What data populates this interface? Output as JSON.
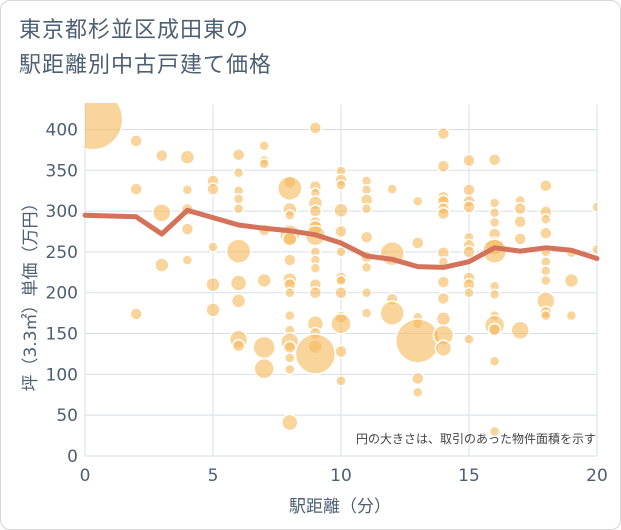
{
  "chart_data": {
    "type": "scatter",
    "title_lines": [
      "東京都杉並区成田東の",
      "駅距離別中古戸建て価格"
    ],
    "xlabel": "駅距離（分）",
    "ylabel": "坪（3.3㎡）単価（万円）",
    "xlim": [
      0,
      20
    ],
    "ylim": [
      0,
      430
    ],
    "xticks": [
      0,
      5,
      10,
      15,
      20
    ],
    "yticks": [
      0,
      50,
      100,
      150,
      200,
      250,
      300,
      350,
      400
    ],
    "note": "円の大きさは、取引のあった物件面積を示す",
    "colors": {
      "bubble": "#f5b95e",
      "line": "#d4735a",
      "grid": "#d7dfe6",
      "text": "#4d5f73"
    },
    "trend_line": {
      "x": [
        0,
        1,
        2,
        3,
        4,
        5,
        6,
        7,
        8,
        9,
        10,
        11,
        12,
        13,
        14,
        15,
        16,
        17,
        18,
        19,
        20
      ],
      "y": [
        295,
        294,
        293,
        272,
        301,
        292,
        283,
        279,
        276,
        271,
        261,
        245,
        241,
        232,
        231,
        238,
        255,
        251,
        255,
        252,
        242
      ]
    },
    "bubbles": [
      {
        "x": 0.3,
        "y": 412,
        "s": 3
      },
      {
        "x": 2,
        "y": 386,
        "s": 0.6
      },
      {
        "x": 2,
        "y": 327,
        "s": 0.6
      },
      {
        "x": 2,
        "y": 174,
        "s": 0.6
      },
      {
        "x": 3,
        "y": 368,
        "s": 0.6
      },
      {
        "x": 3,
        "y": 298,
        "s": 0.9
      },
      {
        "x": 3,
        "y": 234,
        "s": 0.7
      },
      {
        "x": 4,
        "y": 366,
        "s": 0.7
      },
      {
        "x": 4,
        "y": 326,
        "s": 0.5
      },
      {
        "x": 4,
        "y": 302,
        "s": 0.6
      },
      {
        "x": 4,
        "y": 278,
        "s": 0.6
      },
      {
        "x": 4,
        "y": 240,
        "s": 0.5
      },
      {
        "x": 5,
        "y": 337,
        "s": 0.6
      },
      {
        "x": 5,
        "y": 327,
        "s": 0.6
      },
      {
        "x": 5,
        "y": 256,
        "s": 0.5
      },
      {
        "x": 5,
        "y": 210,
        "s": 0.7
      },
      {
        "x": 5,
        "y": 179,
        "s": 0.7
      },
      {
        "x": 6,
        "y": 369,
        "s": 0.6
      },
      {
        "x": 6,
        "y": 347,
        "s": 0.5
      },
      {
        "x": 6,
        "y": 325,
        "s": 0.5
      },
      {
        "x": 6,
        "y": 315,
        "s": 0.5
      },
      {
        "x": 6,
        "y": 303,
        "s": 0.5
      },
      {
        "x": 6,
        "y": 251,
        "s": 1.2
      },
      {
        "x": 6,
        "y": 212,
        "s": 0.8
      },
      {
        "x": 6,
        "y": 190,
        "s": 0.7
      },
      {
        "x": 6,
        "y": 143,
        "s": 0.9
      },
      {
        "x": 6,
        "y": 135,
        "s": 0.6
      },
      {
        "x": 7,
        "y": 380,
        "s": 0.5
      },
      {
        "x": 7,
        "y": 362,
        "s": 0.5
      },
      {
        "x": 7,
        "y": 358,
        "s": 0.5
      },
      {
        "x": 7,
        "y": 277,
        "s": 0.6
      },
      {
        "x": 7,
        "y": 215,
        "s": 0.7
      },
      {
        "x": 7,
        "y": 133,
        "s": 1.1
      },
      {
        "x": 7,
        "y": 107,
        "s": 1.0
      },
      {
        "x": 8,
        "y": 335,
        "s": 0.6
      },
      {
        "x": 8,
        "y": 328,
        "s": 1.2
      },
      {
        "x": 8,
        "y": 302,
        "s": 0.7
      },
      {
        "x": 8,
        "y": 295,
        "s": 0.5
      },
      {
        "x": 8,
        "y": 271,
        "s": 1.0
      },
      {
        "x": 8,
        "y": 266,
        "s": 0.7
      },
      {
        "x": 8,
        "y": 240,
        "s": 0.6
      },
      {
        "x": 8,
        "y": 216,
        "s": 0.7
      },
      {
        "x": 8,
        "y": 210,
        "s": 0.6
      },
      {
        "x": 8,
        "y": 200,
        "s": 0.5
      },
      {
        "x": 8,
        "y": 172,
        "s": 0.5
      },
      {
        "x": 8,
        "y": 154,
        "s": 0.5
      },
      {
        "x": 8,
        "y": 140,
        "s": 0.9
      },
      {
        "x": 8,
        "y": 133,
        "s": 0.6
      },
      {
        "x": 8,
        "y": 120,
        "s": 0.5
      },
      {
        "x": 8,
        "y": 106,
        "s": 0.5
      },
      {
        "x": 8,
        "y": 41,
        "s": 0.8
      },
      {
        "x": 9,
        "y": 402,
        "s": 0.6
      },
      {
        "x": 9,
        "y": 330,
        "s": 0.6
      },
      {
        "x": 9,
        "y": 322,
        "s": 0.5
      },
      {
        "x": 9,
        "y": 310,
        "s": 0.7
      },
      {
        "x": 9,
        "y": 300,
        "s": 0.6
      },
      {
        "x": 9,
        "y": 286,
        "s": 0.6
      },
      {
        "x": 9,
        "y": 280,
        "s": 0.7
      },
      {
        "x": 9,
        "y": 270,
        "s": 1.0
      },
      {
        "x": 9,
        "y": 250,
        "s": 0.5
      },
      {
        "x": 9,
        "y": 240,
        "s": 0.5
      },
      {
        "x": 9,
        "y": 230,
        "s": 0.5
      },
      {
        "x": 9,
        "y": 210,
        "s": 0.6
      },
      {
        "x": 9,
        "y": 200,
        "s": 0.6
      },
      {
        "x": 9,
        "y": 162,
        "s": 0.8
      },
      {
        "x": 9,
        "y": 150,
        "s": 0.6
      },
      {
        "x": 9,
        "y": 134,
        "s": 0.7
      },
      {
        "x": 9,
        "y": 125,
        "s": 2.0
      },
      {
        "x": 10,
        "y": 349,
        "s": 0.5
      },
      {
        "x": 10,
        "y": 338,
        "s": 0.6
      },
      {
        "x": 10,
        "y": 332,
        "s": 0.5
      },
      {
        "x": 10,
        "y": 301,
        "s": 0.7
      },
      {
        "x": 10,
        "y": 275,
        "s": 0.6
      },
      {
        "x": 10,
        "y": 250,
        "s": 0.5
      },
      {
        "x": 10,
        "y": 218,
        "s": 0.6
      },
      {
        "x": 10,
        "y": 215,
        "s": 0.5
      },
      {
        "x": 10,
        "y": 200,
        "s": 0.6
      },
      {
        "x": 10,
        "y": 170,
        "s": 0.6
      },
      {
        "x": 10,
        "y": 162,
        "s": 1.0
      },
      {
        "x": 10,
        "y": 128,
        "s": 0.6
      },
      {
        "x": 10,
        "y": 92,
        "s": 0.5
      },
      {
        "x": 11,
        "y": 337,
        "s": 0.5
      },
      {
        "x": 11,
        "y": 326,
        "s": 0.5
      },
      {
        "x": 11,
        "y": 314,
        "s": 0.6
      },
      {
        "x": 11,
        "y": 303,
        "s": 0.5
      },
      {
        "x": 11,
        "y": 268,
        "s": 0.6
      },
      {
        "x": 11,
        "y": 244,
        "s": 0.6
      },
      {
        "x": 11,
        "y": 231,
        "s": 0.5
      },
      {
        "x": 11,
        "y": 200,
        "s": 0.5
      },
      {
        "x": 11,
        "y": 175,
        "s": 0.5
      },
      {
        "x": 12,
        "y": 327,
        "s": 0.5
      },
      {
        "x": 12,
        "y": 248,
        "s": 1.2
      },
      {
        "x": 12,
        "y": 192,
        "s": 0.6
      },
      {
        "x": 12,
        "y": 175,
        "s": 1.2
      },
      {
        "x": 13,
        "y": 312,
        "s": 0.5
      },
      {
        "x": 13,
        "y": 261,
        "s": 0.6
      },
      {
        "x": 13,
        "y": 170,
        "s": 0.5
      },
      {
        "x": 13,
        "y": 162,
        "s": 0.5
      },
      {
        "x": 13,
        "y": 141,
        "s": 2.2
      },
      {
        "x": 13,
        "y": 95,
        "s": 0.6
      },
      {
        "x": 13,
        "y": 78,
        "s": 0.5
      },
      {
        "x": 14,
        "y": 395,
        "s": 0.6
      },
      {
        "x": 14,
        "y": 355,
        "s": 0.6
      },
      {
        "x": 14,
        "y": 317,
        "s": 0.6
      },
      {
        "x": 14,
        "y": 312,
        "s": 0.6
      },
      {
        "x": 14,
        "y": 303,
        "s": 0.6
      },
      {
        "x": 14,
        "y": 297,
        "s": 0.6
      },
      {
        "x": 14,
        "y": 249,
        "s": 0.6
      },
      {
        "x": 14,
        "y": 238,
        "s": 0.5
      },
      {
        "x": 14,
        "y": 213,
        "s": 0.6
      },
      {
        "x": 14,
        "y": 193,
        "s": 0.6
      },
      {
        "x": 14,
        "y": 168,
        "s": 0.7
      },
      {
        "x": 14,
        "y": 148,
        "s": 1.0
      },
      {
        "x": 14,
        "y": 132,
        "s": 0.8
      },
      {
        "x": 15,
        "y": 362,
        "s": 0.6
      },
      {
        "x": 15,
        "y": 326,
        "s": 0.6
      },
      {
        "x": 15,
        "y": 312,
        "s": 0.6
      },
      {
        "x": 15,
        "y": 305,
        "s": 0.6
      },
      {
        "x": 15,
        "y": 268,
        "s": 0.5
      },
      {
        "x": 15,
        "y": 258,
        "s": 0.6
      },
      {
        "x": 15,
        "y": 250,
        "s": 0.6
      },
      {
        "x": 15,
        "y": 218,
        "s": 0.6
      },
      {
        "x": 15,
        "y": 210,
        "s": 0.6
      },
      {
        "x": 15,
        "y": 200,
        "s": 0.5
      },
      {
        "x": 15,
        "y": 143,
        "s": 0.5
      },
      {
        "x": 16,
        "y": 363,
        "s": 0.6
      },
      {
        "x": 16,
        "y": 310,
        "s": 0.5
      },
      {
        "x": 16,
        "y": 298,
        "s": 0.5
      },
      {
        "x": 16,
        "y": 286,
        "s": 0.5
      },
      {
        "x": 16,
        "y": 272,
        "s": 0.6
      },
      {
        "x": 16,
        "y": 257,
        "s": 0.9
      },
      {
        "x": 16,
        "y": 251,
        "s": 1.2
      },
      {
        "x": 16,
        "y": 208,
        "s": 0.5
      },
      {
        "x": 16,
        "y": 198,
        "s": 0.5
      },
      {
        "x": 16,
        "y": 172,
        "s": 0.5
      },
      {
        "x": 16,
        "y": 160,
        "s": 1.0
      },
      {
        "x": 16,
        "y": 155,
        "s": 0.6
      },
      {
        "x": 16,
        "y": 116,
        "s": 0.5
      },
      {
        "x": 16,
        "y": 30,
        "s": 0.5
      },
      {
        "x": 17,
        "y": 313,
        "s": 0.5
      },
      {
        "x": 17,
        "y": 303,
        "s": 0.6
      },
      {
        "x": 17,
        "y": 287,
        "s": 0.6
      },
      {
        "x": 17,
        "y": 266,
        "s": 0.6
      },
      {
        "x": 17,
        "y": 154,
        "s": 0.9
      },
      {
        "x": 18,
        "y": 331,
        "s": 0.6
      },
      {
        "x": 18,
        "y": 299,
        "s": 0.6
      },
      {
        "x": 18,
        "y": 290,
        "s": 0.5
      },
      {
        "x": 18,
        "y": 273,
        "s": 0.6
      },
      {
        "x": 18,
        "y": 250,
        "s": 0.5
      },
      {
        "x": 18,
        "y": 238,
        "s": 0.5
      },
      {
        "x": 18,
        "y": 227,
        "s": 0.5
      },
      {
        "x": 18,
        "y": 215,
        "s": 0.5
      },
      {
        "x": 18,
        "y": 190,
        "s": 0.9
      },
      {
        "x": 18,
        "y": 176,
        "s": 0.6
      },
      {
        "x": 18,
        "y": 172,
        "s": 0.5
      },
      {
        "x": 19,
        "y": 249,
        "s": 0.5
      },
      {
        "x": 19,
        "y": 215,
        "s": 0.7
      },
      {
        "x": 19,
        "y": 172,
        "s": 0.5
      },
      {
        "x": 20,
        "y": 305,
        "s": 0.5
      },
      {
        "x": 20,
        "y": 253,
        "s": 0.5
      }
    ]
  }
}
